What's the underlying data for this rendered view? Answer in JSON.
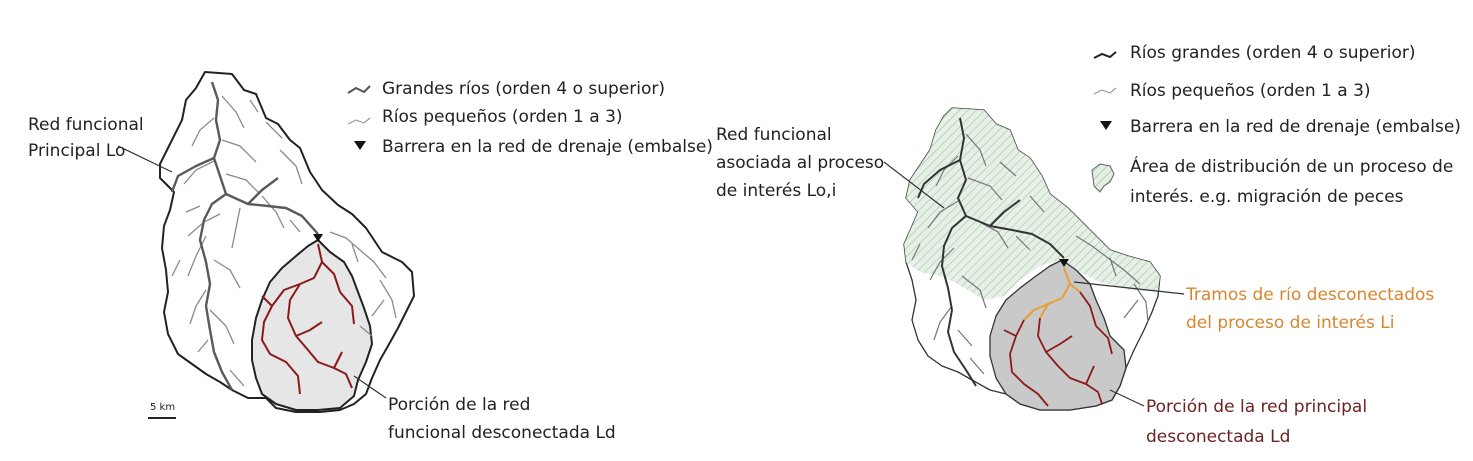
{
  "left_panel": {
    "legend": {
      "large_rivers": "Grandes ríos (orden 4 o superior)",
      "small_rivers": "Ríos pequeños (orden 1 a 3)",
      "barrier": "Barrera en la red de drenaje (embalse)"
    },
    "label_main_network": [
      "Red funcional",
      "Principal Lo"
    ],
    "label_disconnected": [
      "Porción de la red",
      "funcional desconectada Ld"
    ],
    "scale_bar": "5 km"
  },
  "right_panel": {
    "legend": {
      "large_rivers": "Ríos grandes (orden 4 o superior)",
      "small_rivers": "Ríos pequeños (orden 1 a 3)",
      "barrier": "Barrera en la red de drenaje (embalse)",
      "area": [
        "Área de distribución de un proceso de",
        "interés. e.g. migración de peces"
      ]
    },
    "label_functional": [
      "Red funcional",
      "asociada al proceso",
      "de interés Lo,i"
    ],
    "label_disconnected_reaches": [
      "Tramos de río desconectados",
      "del proceso de interés Li"
    ],
    "label_disconnected_portion": [
      "Porción de la red principal",
      "desconectada Ld"
    ]
  },
  "colors": {
    "large_river": "#555555",
    "small_river": "#8a8a8a",
    "disconnected_river": "#8b1a1a",
    "disconnected_fill": "#e6e6e6",
    "disconnected_fill_right": "#c9c9c9",
    "distribution_area": "#d9e6d9",
    "orange_reach": "#e8a030",
    "orange_text": "#d7862e",
    "maroon_text": "#6b2323"
  }
}
